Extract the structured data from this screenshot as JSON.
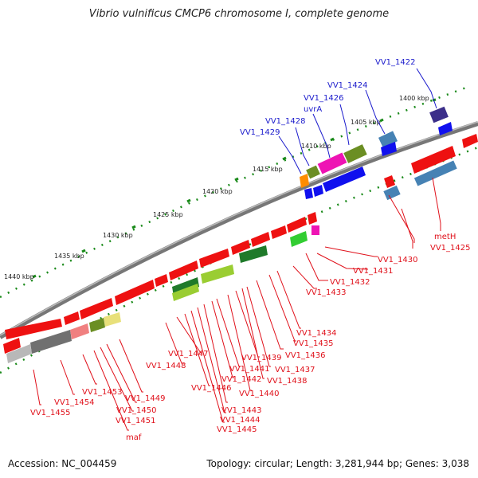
{
  "title": "Vibrio vulnificus CMCP6 chromosome I, complete genome",
  "footer": {
    "accession": "Accession: NC_004459",
    "summary": "Topology: circular; Length: 3,281,944 bp; Genes: 3,038"
  },
  "ruler": [
    "1400 kbp",
    "1405 kbp",
    "1410 kbp",
    "1415 kbp",
    "1420 kbp",
    "1425 kbp",
    "1430 kbp",
    "1435 kbp",
    "1440 kbp"
  ],
  "colors": {
    "red": "#ee1111",
    "blue": "#1010ee",
    "steel": "#4682b4",
    "navy": "#3c2f8a",
    "olive": "#6b8e23",
    "magenta": "#ee14b4",
    "orange": "#ff8c00",
    "green": "#32cd32",
    "lime": "#9acd32",
    "darkgreen": "#1f7a2a",
    "pink": "#f08080",
    "khaki": "#e8e07a",
    "gray": "#707070",
    "lightgray": "#b8b8b8"
  },
  "top_labels": [
    "VV1_1422",
    "VV1_1424",
    "VV1_1426",
    "uvrA",
    "VV1_1428",
    "VV1_1429"
  ],
  "bottom_labels": [
    "VV1_1425",
    "metH",
    "VV1_1430",
    "VV1_1431",
    "VV1_1432",
    "VV1_1433",
    "VV1_1434",
    "VV1_1435",
    "VV1_1436",
    "VV1_1437",
    "VV1_1438",
    "VV1_1439",
    "VV1_1440",
    "VV1_1441",
    "VV1_1442",
    "VV1_1443",
    "VV1_1444",
    "VV1_1445",
    "VV1_1446",
    "VV1_1447",
    "VV1_1448",
    "VV1_1449",
    "VV1_1450",
    "VV1_1451",
    "maf",
    "VV1_1453",
    "VV1_1454",
    "VV1_1455"
  ]
}
